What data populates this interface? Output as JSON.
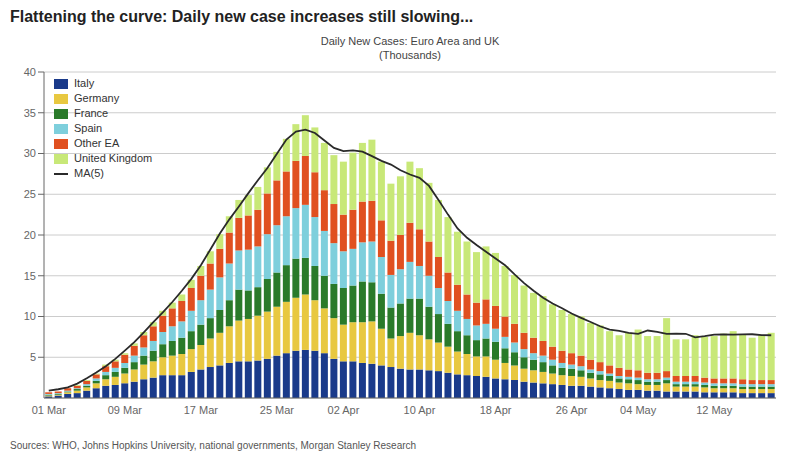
{
  "chart_data": {
    "type": "bar",
    "title": "Flattening the curve: Daily new case increases still slowing...",
    "subtitle": "Daily New Cases: Euro Area and UK\n(Thousands)",
    "annotations": [
      "Sources: WHO, Johns Hopkins University, national governments, Morgan Stanley Research"
    ],
    "stacked": true,
    "grid": true,
    "legend": "top-left",
    "categories": [
      "01 Mar",
      null,
      null,
      null,
      null,
      null,
      null,
      null,
      "09 Mar",
      null,
      null,
      null,
      null,
      null,
      null,
      null,
      "17 Mar",
      null,
      null,
      null,
      null,
      null,
      null,
      null,
      "25 Mar",
      null,
      null,
      null,
      null,
      null,
      null,
      "02 Apr",
      null,
      null,
      null,
      null,
      null,
      null,
      null,
      "10 Apr",
      null,
      null,
      null,
      null,
      null,
      null,
      null,
      "18 Apr",
      null,
      null,
      null,
      null,
      null,
      null,
      null,
      "26 Apr",
      null,
      null,
      null,
      null,
      null,
      null,
      "04 May",
      null,
      null,
      null,
      null,
      null,
      null,
      null,
      "12 May",
      null,
      null,
      null,
      null,
      null,
      null
    ],
    "ylim": [
      0,
      40
    ],
    "yticks": [
      5,
      10,
      15,
      20,
      25,
      30,
      35,
      40
    ],
    "series": [
      {
        "name": "Italy",
        "color": "#1a3a8a",
        "values": [
          0.2,
          0.3,
          0.5,
          0.6,
          0.9,
          1.2,
          1.5,
          1.6,
          1.8,
          2.0,
          2.3,
          2.5,
          2.8,
          2.8,
          2.8,
          3.2,
          3.5,
          3.8,
          4.0,
          4.3,
          4.5,
          4.5,
          4.6,
          4.8,
          5.2,
          5.5,
          5.8,
          5.9,
          5.8,
          5.5,
          4.8,
          4.5,
          4.5,
          4.3,
          4.2,
          4.0,
          3.8,
          3.6,
          3.5,
          3.5,
          3.4,
          3.3,
          3.1,
          2.9,
          2.8,
          2.7,
          2.6,
          2.4,
          2.3,
          2.2,
          2.0,
          1.9,
          1.8,
          1.7,
          1.6,
          1.5,
          1.5,
          1.4,
          1.3,
          1.2,
          1.1,
          1.0,
          1.0,
          0.9,
          0.9,
          0.8,
          0.8,
          0.8,
          0.8,
          0.7,
          0.7,
          0.7,
          0.7,
          0.6,
          0.6,
          0.6,
          0.6
        ]
      },
      {
        "name": "Germany",
        "color": "#e8c840",
        "values": [
          0.1,
          0.1,
          0.2,
          0.3,
          0.4,
          0.6,
          0.8,
          1.0,
          1.2,
          1.5,
          1.8,
          2.0,
          2.2,
          2.4,
          2.6,
          2.8,
          3.0,
          3.5,
          4.0,
          4.5,
          5.0,
          5.2,
          5.5,
          5.8,
          6.0,
          6.3,
          6.5,
          6.8,
          6.2,
          5.5,
          5.0,
          4.5,
          4.8,
          5.0,
          5.2,
          4.5,
          3.5,
          4.0,
          4.5,
          4.2,
          3.8,
          3.5,
          3.2,
          2.8,
          2.6,
          2.4,
          2.5,
          2.3,
          2.0,
          1.8,
          1.6,
          1.5,
          1.4,
          1.3,
          1.2,
          1.2,
          1.1,
          1.0,
          0.9,
          0.9,
          0.8,
          0.8,
          0.7,
          0.7,
          0.7,
          1.0,
          0.6,
          0.6,
          0.6,
          0.6,
          0.5,
          0.5,
          0.5,
          0.5,
          0.5,
          0.5,
          0.5
        ]
      },
      {
        "name": "France",
        "color": "#2a7a2a",
        "values": [
          0.1,
          0.1,
          0.1,
          0.2,
          0.2,
          0.3,
          0.5,
          0.6,
          0.7,
          0.9,
          1.1,
          1.3,
          1.6,
          1.8,
          2.0,
          2.2,
          2.5,
          2.5,
          2.8,
          3.2,
          3.8,
          3.5,
          3.5,
          4.0,
          4.2,
          4.5,
          4.8,
          4.5,
          4.2,
          4.0,
          4.2,
          4.5,
          4.5,
          5.0,
          4.8,
          4.3,
          3.8,
          4.0,
          4.2,
          4.5,
          4.0,
          3.5,
          2.8,
          2.5,
          2.3,
          2.0,
          2.2,
          2.2,
          1.8,
          1.6,
          1.4,
          1.3,
          1.2,
          1.0,
          0.9,
          0.9,
          0.8,
          0.7,
          0.7,
          0.6,
          0.5,
          0.5,
          0.5,
          0.4,
          0.4,
          0.4,
          0.3,
          0.3,
          0.3,
          0.3,
          0.3,
          0.3,
          0.3,
          0.3,
          0.3,
          0.3,
          0.3
        ]
      },
      {
        "name": "Spain",
        "color": "#7ecfdc",
        "values": [
          0.1,
          0.1,
          0.1,
          0.1,
          0.2,
          0.3,
          0.4,
          0.5,
          0.6,
          0.8,
          1.0,
          1.2,
          1.5,
          1.8,
          2.0,
          2.5,
          3.0,
          3.5,
          4.0,
          4.5,
          4.8,
          5.0,
          5.0,
          5.5,
          5.8,
          6.0,
          6.2,
          6.5,
          6.0,
          5.5,
          5.0,
          4.5,
          4.5,
          4.8,
          5.0,
          4.5,
          4.0,
          4.2,
          4.5,
          4.0,
          3.8,
          3.2,
          2.8,
          2.5,
          2.0,
          1.8,
          1.8,
          1.6,
          1.4,
          1.2,
          1.0,
          0.8,
          0.8,
          0.7,
          0.6,
          0.5,
          0.5,
          0.4,
          0.4,
          0.3,
          0.3,
          0.3,
          0.3,
          0.3,
          0.3,
          0.3,
          0.3,
          0.3,
          0.3,
          0.3,
          0.3,
          0.3,
          0.3,
          0.3,
          0.3,
          0.3,
          0.3
        ]
      },
      {
        "name": "Other EA",
        "color": "#e05020",
        "values": [
          0.2,
          0.2,
          0.3,
          0.3,
          0.4,
          0.5,
          0.7,
          0.8,
          1.0,
          1.2,
          1.5,
          1.8,
          2.0,
          2.2,
          2.5,
          2.8,
          3.0,
          3.2,
          3.5,
          3.8,
          4.0,
          4.2,
          4.5,
          5.0,
          5.5,
          5.5,
          5.8,
          6.0,
          5.5,
          5.0,
          4.8,
          4.5,
          4.8,
          5.0,
          5.0,
          4.5,
          4.2,
          4.2,
          4.8,
          4.5,
          4.2,
          3.8,
          3.5,
          3.2,
          3.0,
          2.8,
          3.0,
          2.8,
          2.5,
          2.3,
          2.0,
          1.9,
          1.8,
          1.6,
          1.5,
          1.4,
          1.3,
          1.2,
          1.1,
          1.0,
          1.0,
          0.9,
          0.9,
          0.8,
          0.8,
          0.8,
          0.7,
          0.7,
          0.7,
          0.6,
          0.6,
          0.6,
          0.6,
          0.6,
          0.5,
          0.5,
          0.5
        ]
      },
      {
        "name": "United Kingdom",
        "color": "#c8e878",
        "values": [
          0.0,
          0.0,
          0.0,
          0.1,
          0.1,
          0.1,
          0.2,
          0.2,
          0.2,
          0.3,
          0.4,
          0.5,
          0.6,
          0.7,
          0.8,
          1.0,
          1.2,
          1.5,
          1.8,
          2.0,
          2.2,
          2.5,
          2.8,
          3.2,
          3.5,
          4.0,
          4.5,
          5.0,
          5.5,
          5.8,
          6.0,
          6.5,
          7.0,
          7.2,
          7.5,
          7.2,
          7.0,
          7.2,
          7.5,
          7.5,
          7.2,
          7.0,
          6.8,
          6.5,
          6.5,
          6.2,
          6.5,
          6.5,
          6.2,
          6.0,
          5.8,
          5.5,
          5.5,
          5.2,
          5.0,
          4.8,
          4.8,
          4.5,
          4.5,
          4.2,
          4.0,
          4.5,
          5.0,
          4.5,
          4.5,
          6.5,
          4.5,
          4.5,
          5.0,
          5.0,
          5.2,
          5.5,
          5.8,
          5.5,
          5.2,
          5.5,
          5.8
        ]
      },
      {
        "name": "MA(5)",
        "type": "line",
        "color": "#2a2a2a",
        "values": [
          0.9,
          1.075,
          1.3,
          1.76,
          2.42,
          3.12,
          3.9,
          4.8,
          5.82,
          6.86,
          8.06,
          9.3,
          10.5,
          11.78,
          13.16,
          14.62,
          16.3,
          18.22,
          20.18,
          21.92,
          23.5,
          25.14,
          26.72,
          28.22,
          29.96,
          31.72,
          32.7,
          32.92,
          32.52,
          31.6,
          30.68,
          30.3,
          30.38,
          30.22,
          29.68,
          29.1,
          28.64,
          27.94,
          27.42,
          27.02,
          26.02,
          24.3,
          22.5,
          20.8,
          19.66,
          18.78,
          17.94,
          17.12,
          16.3,
          15.16,
          14.1,
          13.16,
          12.3,
          11.6,
          11.02,
          10.36,
          9.84,
          9.32,
          8.8,
          8.4,
          8.24,
          7.98,
          7.86,
          8.28,
          8.12,
          7.88,
          7.9,
          7.88,
          7.44,
          7.58,
          7.78,
          7.8,
          7.78,
          7.8,
          7.82,
          7.725,
          7.7
        ]
      }
    ]
  }
}
